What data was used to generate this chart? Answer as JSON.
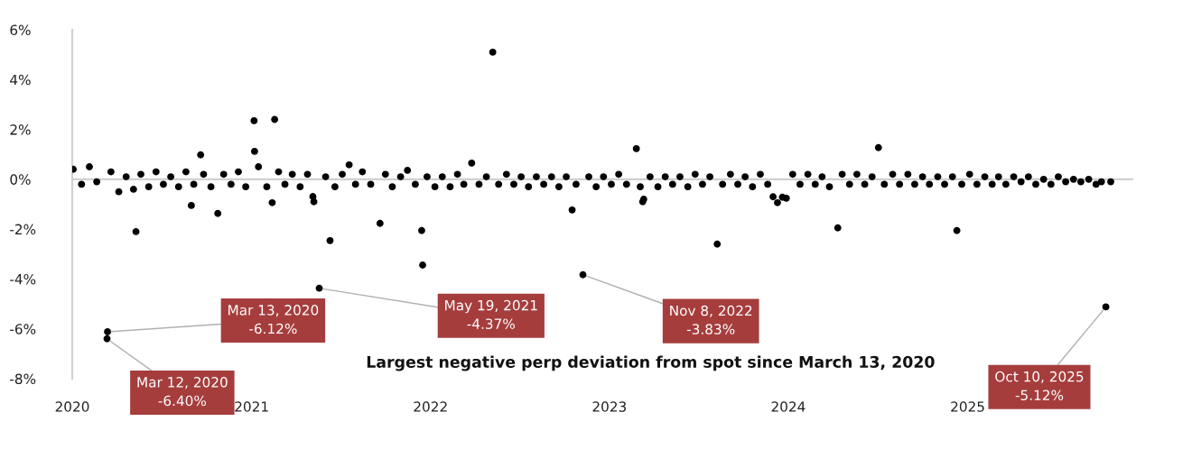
{
  "chart_data": {
    "type": "scatter",
    "title": "Largest negative perp deviation from spot since March 13, 2020",
    "x": [
      "2020-01-03",
      "2020-01-20",
      "2020-02-05",
      "2020-02-20",
      "2020-03-12",
      "2020-03-13",
      "2020-03-20",
      "2020-04-05",
      "2020-04-20",
      "2020-05-05",
      "2020-05-10",
      "2020-05-20",
      "2020-06-05",
      "2020-06-20",
      "2020-07-05",
      "2020-07-20",
      "2020-08-05",
      "2020-08-20",
      "2020-08-31",
      "2020-09-05",
      "2020-09-19",
      "2020-09-25",
      "2020-10-10",
      "2020-10-24",
      "2020-11-05",
      "2020-11-20",
      "2020-12-05",
      "2020-12-20",
      "2021-01-06",
      "2021-01-07",
      "2021-01-15",
      "2021-02-01",
      "2021-02-12",
      "2021-02-17",
      "2021-02-25",
      "2021-03-10",
      "2021-03-25",
      "2021-04-10",
      "2021-04-25",
      "2021-05-06",
      "2021-05-08",
      "2021-05-19",
      "2021-06-01",
      "2021-06-10",
      "2021-06-20",
      "2021-07-05",
      "2021-07-19",
      "2021-08-01",
      "2021-08-15",
      "2021-09-01",
      "2021-09-20",
      "2021-10-01",
      "2021-10-15",
      "2021-11-01",
      "2021-11-15",
      "2021-12-01",
      "2021-12-14",
      "2021-12-16",
      "2021-12-25",
      "2022-01-10",
      "2022-01-25",
      "2022-02-10",
      "2022-02-25",
      "2022-03-10",
      "2022-03-26",
      "2022-04-10",
      "2022-04-25",
      "2022-05-08",
      "2022-05-20",
      "2022-06-05",
      "2022-06-20",
      "2022-07-05",
      "2022-07-20",
      "2022-08-05",
      "2022-08-20",
      "2022-09-05",
      "2022-09-20",
      "2022-10-05",
      "2022-10-17",
      "2022-10-25",
      "2022-11-08",
      "2022-11-20",
      "2022-12-05",
      "2022-12-20",
      "2023-01-05",
      "2023-01-20",
      "2023-02-05",
      "2023-02-25",
      "2023-03-05",
      "2023-03-10",
      "2023-03-12",
      "2023-03-25",
      "2023-04-10",
      "2023-04-25",
      "2023-05-10",
      "2023-05-25",
      "2023-06-10",
      "2023-06-25",
      "2023-07-10",
      "2023-07-25",
      "2023-08-09",
      "2023-08-20",
      "2023-09-05",
      "2023-09-20",
      "2023-10-05",
      "2023-10-20",
      "2023-11-05",
      "2023-11-20",
      "2023-12-01",
      "2023-12-10",
      "2023-12-20",
      "2023-12-28",
      "2024-01-10",
      "2024-01-25",
      "2024-02-10",
      "2024-02-25",
      "2024-03-10",
      "2024-03-25",
      "2024-04-11",
      "2024-04-20",
      "2024-05-05",
      "2024-05-20",
      "2024-06-05",
      "2024-06-20",
      "2024-07-03",
      "2024-07-15",
      "2024-08-01",
      "2024-08-15",
      "2024-09-01",
      "2024-09-15",
      "2024-10-01",
      "2024-10-15",
      "2024-11-01",
      "2024-11-15",
      "2024-12-01",
      "2024-12-10",
      "2024-12-20",
      "2025-01-05",
      "2025-01-20",
      "2025-02-05",
      "2025-02-20",
      "2025-03-05",
      "2025-03-20",
      "2025-04-05",
      "2025-04-20",
      "2025-05-05",
      "2025-05-20",
      "2025-06-05",
      "2025-06-20",
      "2025-07-05",
      "2025-07-20",
      "2025-08-05",
      "2025-08-20",
      "2025-09-05",
      "2025-09-20",
      "2025-10-01",
      "2025-10-10",
      "2025-10-20"
    ],
    "values": [
      0.4,
      -0.2,
      0.5,
      -0.1,
      -6.4,
      -6.12,
      0.3,
      -0.5,
      0.1,
      -0.4,
      -2.1,
      0.2,
      -0.3,
      0.3,
      -0.2,
      0.1,
      -0.3,
      0.3,
      -1.05,
      -0.2,
      0.98,
      0.2,
      -0.3,
      -1.37,
      0.2,
      -0.2,
      0.3,
      -0.3,
      2.35,
      1.12,
      0.5,
      -0.3,
      -0.94,
      2.4,
      0.3,
      -0.2,
      0.2,
      -0.3,
      0.2,
      -0.69,
      -0.9,
      -4.37,
      0.1,
      -2.46,
      -0.3,
      0.2,
      0.58,
      -0.2,
      0.3,
      -0.2,
      -1.77,
      0.2,
      -0.3,
      0.1,
      0.36,
      -0.2,
      -2.06,
      -3.44,
      0.1,
      -0.3,
      0.1,
      -0.3,
      0.2,
      -0.2,
      0.65,
      -0.2,
      0.1,
      5.1,
      -0.2,
      0.2,
      -0.2,
      0.1,
      -0.3,
      0.1,
      -0.2,
      0.1,
      -0.3,
      0.1,
      -1.23,
      -0.2,
      -3.83,
      0.1,
      -0.3,
      0.1,
      -0.2,
      0.2,
      -0.2,
      1.23,
      -0.3,
      -0.9,
      -0.8,
      0.1,
      -0.3,
      0.1,
      -0.2,
      0.1,
      -0.3,
      0.2,
      -0.2,
      0.1,
      -2.6,
      -0.2,
      0.2,
      -0.2,
      0.1,
      -0.3,
      0.2,
      -0.2,
      -0.7,
      -0.94,
      -0.72,
      -0.76,
      0.2,
      -0.2,
      0.2,
      -0.2,
      0.1,
      -0.3,
      -1.95,
      0.2,
      -0.2,
      0.2,
      -0.2,
      0.1,
      1.27,
      -0.2,
      0.2,
      -0.2,
      0.2,
      -0.2,
      0.1,
      -0.2,
      0.1,
      -0.2,
      0.1,
      -2.06,
      -0.2,
      0.2,
      -0.2,
      0.1,
      -0.2,
      0.1,
      -0.2,
      0.1,
      -0.1,
      0.1,
      -0.2,
      0.0,
      -0.2,
      0.1,
      -0.1,
      0.0,
      -0.1,
      0.0,
      -0.2,
      -0.1,
      -5.12,
      -0.1
    ],
    "color": "#000000",
    "marker": "circle",
    "xlim": [
      "2020-01-01",
      "2025-12-05"
    ],
    "xticks": [
      {
        "value": "2020-01-01",
        "label": "2020"
      },
      {
        "value": "2021-01-01",
        "label": "2021"
      },
      {
        "value": "2022-01-01",
        "label": "2022"
      },
      {
        "value": "2023-01-01",
        "label": "2023"
      },
      {
        "value": "2024-01-01",
        "label": "2024"
      },
      {
        "value": "2025-01-01",
        "label": "2025"
      }
    ],
    "ylim": [
      -8,
      6
    ],
    "yticks": [
      {
        "value": -8,
        "label": "-8%"
      },
      {
        "value": -6,
        "label": "-6%"
      },
      {
        "value": -4,
        "label": "-4%"
      },
      {
        "value": -2,
        "label": "-2%"
      },
      {
        "value": 0,
        "label": "0%"
      },
      {
        "value": 2,
        "label": "2%"
      },
      {
        "value": 4,
        "label": "4%"
      },
      {
        "value": 6,
        "label": "6%"
      }
    ],
    "grid": false,
    "legend": false,
    "ref_lines": [
      {
        "axis": "y",
        "value": 0,
        "color": "#d0d0d0"
      }
    ],
    "annotations": [
      {
        "text": "Mar 13, 2020\n-6.12%",
        "x": "2020-03-13",
        "y": -6.12
      },
      {
        "text": "Mar 12, 2020\n-6.40%",
        "x": "2020-03-12",
        "y": -6.4
      },
      {
        "text": "May 19, 2021\n-4.37%",
        "x": "2021-05-19",
        "y": -4.37
      },
      {
        "text": "Nov 8, 2022\n-3.83%",
        "x": "2022-11-08",
        "y": -3.83
      },
      {
        "text": "Oct 10, 2025\n-5.12%",
        "x": "2025-10-10",
        "y": -5.12
      }
    ]
  }
}
